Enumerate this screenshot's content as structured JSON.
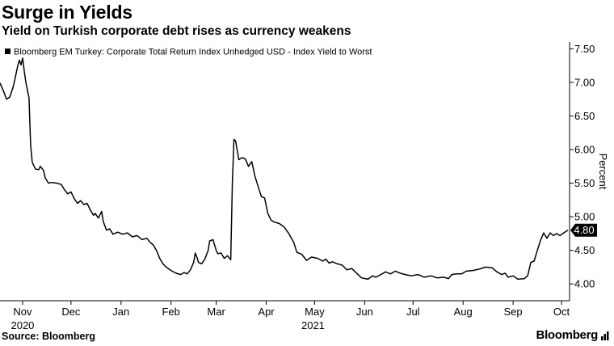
{
  "header": {
    "title": "Surge in Yields",
    "subtitle": "Yield on Turkish corporate debt rises as currency weakens"
  },
  "footer": {
    "source": "Source: Bloomberg",
    "brand": "Bloomberg",
    "brand_icon": "bar-chart-icon"
  },
  "chart_data": {
    "type": "line",
    "title": "Surge in Yields",
    "subtitle": "Yield on Turkish corporate debt rises as currency weakens",
    "ylabel": "Percent",
    "ylim": [
      3.75,
      7.6
    ],
    "y_ticks": [
      "4.00",
      "4.50",
      "5.00",
      "5.50",
      "6.00",
      "6.50",
      "7.00",
      "7.50"
    ],
    "y_tick_values": [
      4.0,
      4.5,
      5.0,
      5.5,
      6.0,
      6.5,
      7.0,
      7.5
    ],
    "xlim": [
      "2020-10-18",
      "2021-10-06"
    ],
    "x_ticks": [
      {
        "label": "Nov",
        "date": "2020-11-01"
      },
      {
        "label": "Dec",
        "date": "2020-12-01"
      },
      {
        "label": "Jan",
        "date": "2021-01-01"
      },
      {
        "label": "Feb",
        "date": "2021-02-01"
      },
      {
        "label": "Mar",
        "date": "2021-03-01"
      },
      {
        "label": "Apr",
        "date": "2021-04-01"
      },
      {
        "label": "May",
        "date": "2021-05-01"
      },
      {
        "label": "Jun",
        "date": "2021-06-01"
      },
      {
        "label": "Jul",
        "date": "2021-07-01"
      },
      {
        "label": "Aug",
        "date": "2021-08-01"
      },
      {
        "label": "Sep",
        "date": "2021-09-01"
      },
      {
        "label": "Oct",
        "date": "2021-10-01"
      }
    ],
    "year_labels": [
      {
        "label": "2020",
        "date": "2020-11-01"
      },
      {
        "label": "2021",
        "date": "2021-04-30"
      }
    ],
    "legend": {
      "label": "Bloomberg EM Turkey: Corporate Total Return Index Unhedged USD - Index Yield to Worst",
      "placement": "top-left"
    },
    "last_value_label": "4.80",
    "grid": false,
    "color": "#000000",
    "series": [
      {
        "name": "Bloomberg EM Turkey: Corporate Total Return Index Unhedged USD - Index Yield to Worst",
        "points": [
          [
            "2020-10-18",
            6.99
          ],
          [
            "2020-10-20",
            6.88
          ],
          [
            "2020-10-22",
            6.75
          ],
          [
            "2020-10-24",
            6.78
          ],
          [
            "2020-10-26",
            6.92
          ],
          [
            "2020-10-27",
            7.02
          ],
          [
            "2020-10-29",
            7.25
          ],
          [
            "2020-10-30",
            7.33
          ],
          [
            "2020-10-31",
            7.26
          ],
          [
            "2020-11-01",
            7.36
          ],
          [
            "2020-11-02",
            7.17
          ],
          [
            "2020-11-03",
            7.0
          ],
          [
            "2020-11-04",
            6.88
          ],
          [
            "2020-11-05",
            6.77
          ],
          [
            "2020-11-06",
            6.07
          ],
          [
            "2020-11-07",
            5.81
          ],
          [
            "2020-11-09",
            5.71
          ],
          [
            "2020-11-11",
            5.7
          ],
          [
            "2020-11-12",
            5.75
          ],
          [
            "2020-11-14",
            5.69
          ],
          [
            "2020-11-15",
            5.58
          ],
          [
            "2020-11-17",
            5.5
          ],
          [
            "2020-11-19",
            5.51
          ],
          [
            "2020-11-22",
            5.5
          ],
          [
            "2020-11-25",
            5.48
          ],
          [
            "2020-11-27",
            5.4
          ],
          [
            "2020-11-29",
            5.34
          ],
          [
            "2020-12-01",
            5.37
          ],
          [
            "2020-12-03",
            5.27
          ],
          [
            "2020-12-05",
            5.2
          ],
          [
            "2020-12-07",
            5.24
          ],
          [
            "2020-12-09",
            5.18
          ],
          [
            "2020-12-11",
            5.2
          ],
          [
            "2020-12-13",
            5.1
          ],
          [
            "2020-12-15",
            5.02
          ],
          [
            "2020-12-16",
            5.05
          ],
          [
            "2020-12-18",
            4.98
          ],
          [
            "2020-12-20",
            5.08
          ],
          [
            "2020-12-21",
            4.93
          ],
          [
            "2020-12-23",
            4.8
          ],
          [
            "2020-12-25",
            4.82
          ],
          [
            "2020-12-27",
            4.74
          ],
          [
            "2020-12-30",
            4.77
          ],
          [
            "2021-01-02",
            4.74
          ],
          [
            "2021-01-05",
            4.76
          ],
          [
            "2021-01-08",
            4.7
          ],
          [
            "2021-01-11",
            4.72
          ],
          [
            "2021-01-14",
            4.66
          ],
          [
            "2021-01-17",
            4.68
          ],
          [
            "2021-01-19",
            4.62
          ],
          [
            "2021-01-21",
            4.58
          ],
          [
            "2021-01-23",
            4.5
          ],
          [
            "2021-01-25",
            4.38
          ],
          [
            "2021-01-27",
            4.3
          ],
          [
            "2021-01-29",
            4.25
          ],
          [
            "2021-02-01",
            4.2
          ],
          [
            "2021-02-04",
            4.16
          ],
          [
            "2021-02-07",
            4.14
          ],
          [
            "2021-02-09",
            4.17
          ],
          [
            "2021-02-11",
            4.15
          ],
          [
            "2021-02-13",
            4.21
          ],
          [
            "2021-02-15",
            4.32
          ],
          [
            "2021-02-16",
            4.46
          ],
          [
            "2021-02-17",
            4.4
          ],
          [
            "2021-02-18",
            4.32
          ],
          [
            "2021-02-20",
            4.3
          ],
          [
            "2021-02-22",
            4.37
          ],
          [
            "2021-02-24",
            4.5
          ],
          [
            "2021-02-25",
            4.64
          ],
          [
            "2021-02-27",
            4.66
          ],
          [
            "2021-03-01",
            4.5
          ],
          [
            "2021-03-02",
            4.45
          ],
          [
            "2021-03-04",
            4.46
          ],
          [
            "2021-03-06",
            4.38
          ],
          [
            "2021-03-08",
            4.42
          ],
          [
            "2021-03-10",
            4.36
          ],
          [
            "2021-03-11",
            5.5
          ],
          [
            "2021-03-12",
            6.15
          ],
          [
            "2021-03-13",
            6.13
          ],
          [
            "2021-03-15",
            5.85
          ],
          [
            "2021-03-17",
            5.88
          ],
          [
            "2021-03-19",
            5.86
          ],
          [
            "2021-03-21",
            5.75
          ],
          [
            "2021-03-23",
            5.82
          ],
          [
            "2021-03-25",
            5.6
          ],
          [
            "2021-03-27",
            5.45
          ],
          [
            "2021-03-29",
            5.3
          ],
          [
            "2021-03-31",
            5.28
          ],
          [
            "2021-04-02",
            5.05
          ],
          [
            "2021-04-04",
            4.95
          ],
          [
            "2021-04-06",
            4.92
          ],
          [
            "2021-04-09",
            4.9
          ],
          [
            "2021-04-12",
            4.85
          ],
          [
            "2021-04-15",
            4.75
          ],
          [
            "2021-04-18",
            4.62
          ],
          [
            "2021-04-20",
            4.47
          ],
          [
            "2021-04-23",
            4.44
          ],
          [
            "2021-04-26",
            4.35
          ],
          [
            "2021-04-29",
            4.4
          ],
          [
            "2021-05-03",
            4.38
          ],
          [
            "2021-05-06",
            4.34
          ],
          [
            "2021-05-08",
            4.37
          ],
          [
            "2021-05-10",
            4.31
          ],
          [
            "2021-05-12",
            4.33
          ],
          [
            "2021-05-15",
            4.3
          ],
          [
            "2021-05-18",
            4.28
          ],
          [
            "2021-05-21",
            4.21
          ],
          [
            "2021-05-24",
            4.23
          ],
          [
            "2021-05-27",
            4.16
          ],
          [
            "2021-05-30",
            4.09
          ],
          [
            "2021-06-03",
            4.07
          ],
          [
            "2021-06-06",
            4.12
          ],
          [
            "2021-06-08",
            4.1
          ],
          [
            "2021-06-11",
            4.14
          ],
          [
            "2021-06-14",
            4.18
          ],
          [
            "2021-06-17",
            4.15
          ],
          [
            "2021-06-20",
            4.19
          ],
          [
            "2021-06-23",
            4.16
          ],
          [
            "2021-06-26",
            4.14
          ],
          [
            "2021-06-30",
            4.12
          ],
          [
            "2021-07-04",
            4.14
          ],
          [
            "2021-07-08",
            4.1
          ],
          [
            "2021-07-12",
            4.12
          ],
          [
            "2021-07-16",
            4.09
          ],
          [
            "2021-07-20",
            4.1
          ],
          [
            "2021-07-23",
            4.08
          ],
          [
            "2021-07-25",
            4.14
          ],
          [
            "2021-07-28",
            4.15
          ],
          [
            "2021-07-31",
            4.15
          ],
          [
            "2021-08-03",
            4.19
          ],
          [
            "2021-08-07",
            4.2
          ],
          [
            "2021-08-11",
            4.22
          ],
          [
            "2021-08-15",
            4.25
          ],
          [
            "2021-08-19",
            4.24
          ],
          [
            "2021-08-22",
            4.18
          ],
          [
            "2021-08-25",
            4.14
          ],
          [
            "2021-08-27",
            4.16
          ],
          [
            "2021-08-29",
            4.1
          ],
          [
            "2021-09-01",
            4.12
          ],
          [
            "2021-09-04",
            4.07
          ],
          [
            "2021-09-08",
            4.08
          ],
          [
            "2021-09-10",
            4.12
          ],
          [
            "2021-09-12",
            4.32
          ],
          [
            "2021-09-14",
            4.34
          ],
          [
            "2021-09-16",
            4.5
          ],
          [
            "2021-09-18",
            4.65
          ],
          [
            "2021-09-20",
            4.76
          ],
          [
            "2021-09-22",
            4.68
          ],
          [
            "2021-09-24",
            4.76
          ],
          [
            "2021-09-26",
            4.72
          ],
          [
            "2021-09-28",
            4.75
          ],
          [
            "2021-09-30",
            4.72
          ],
          [
            "2021-10-03",
            4.77
          ],
          [
            "2021-10-05",
            4.8
          ]
        ]
      }
    ]
  }
}
